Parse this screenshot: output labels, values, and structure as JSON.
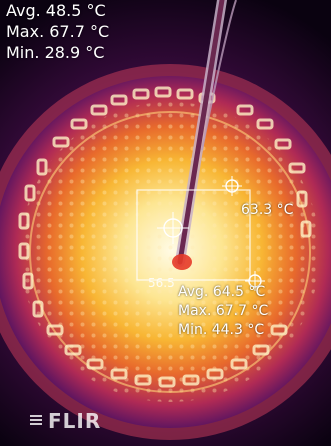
{
  "overlay": {
    "avg": "Avg.  48.5 °C",
    "max": "Max.  67.7 °C",
    "min": "Min.  28.9 °C"
  },
  "spot": {
    "temperature": "63.3 °C"
  },
  "measurement_box": {
    "center_value": "56.5",
    "avg": "Avg.  64.5 °C",
    "max": "Max.  67.7 °C",
    "min": "Min.  44.3 °C"
  },
  "brand": {
    "logo_text": "FLIR"
  },
  "palette": {
    "hot": "#fff6c8",
    "warm": "#f7b52c",
    "mid": "#e0562a",
    "cool": "#7a1b63",
    "cold": "#12031a"
  }
}
